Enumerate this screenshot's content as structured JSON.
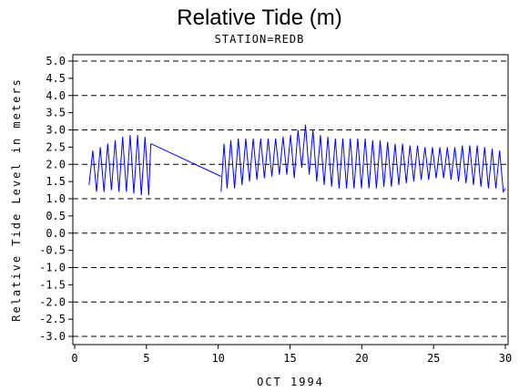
{
  "title": "Relative Tide (m)",
  "subtitle": "STATION=REDB",
  "chart_data": {
    "type": "line",
    "title": "Relative Tide (m)",
    "subtitle": "STATION=REDB",
    "xlabel": "OCT 1994",
    "ylabel": "Relative Tide Level in meters",
    "xlim": [
      0,
      30
    ],
    "ylim": [
      -3.0,
      5.0
    ],
    "xticks": [
      "0",
      "5",
      "10",
      "15",
      "20",
      "25",
      "30"
    ],
    "xtick_values": [
      0,
      5,
      10,
      15,
      20,
      25,
      30
    ],
    "yticks": [
      "5.0",
      "4.5",
      "4.0",
      "3.5",
      "3.0",
      "2.5",
      "2.0",
      "1.5",
      "1.0",
      "0.5",
      "0.0",
      "-0.5",
      "-1.0",
      "-1.5",
      "-2.0",
      "-2.5",
      "-3.0"
    ],
    "ytick_values": [
      5.0,
      4.5,
      4.0,
      3.5,
      3.0,
      2.5,
      2.0,
      1.5,
      1.0,
      0.5,
      0.0,
      -0.5,
      -1.0,
      -1.5,
      -2.0,
      -2.5,
      -3.0
    ],
    "dashed_gridlines_y": [
      5.0,
      4.0,
      3.0,
      2.0,
      1.0,
      0.0,
      -1.0,
      -2.0,
      -3.0
    ],
    "line_color": "#0000ff",
    "series": [
      {
        "segments": [
          {
            "x": [
              1.0,
              1.26,
              1.52,
              1.78,
              2.04,
              2.3,
              2.56,
              2.82,
              3.08,
              3.34,
              3.6,
              3.86,
              4.12,
              4.38,
              4.64,
              4.9,
              5.16,
              5.3
            ],
            "y": [
              1.4,
              2.4,
              1.2,
              2.5,
              1.2,
              2.6,
              1.25,
              2.7,
              1.2,
              2.8,
              1.2,
              2.85,
              1.15,
              2.85,
              1.1,
              2.8,
              1.1,
              2.6
            ]
          },
          {
            "x": [
              5.3,
              10.2
            ],
            "y": [
              2.6,
              1.65
            ]
          },
          {
            "x": [
              10.2,
              10.4,
              10.62,
              10.88,
              11.14,
              11.4,
              11.66,
              11.92,
              12.18,
              12.44,
              12.7,
              12.96,
              13.22,
              13.48,
              13.74,
              14.0,
              14.26,
              14.52,
              14.78,
              15.04,
              15.3,
              15.56,
              15.82,
              16.08,
              16.34,
              16.6,
              16.86,
              17.12,
              17.38,
              17.64,
              17.9,
              18.16,
              18.42,
              18.68,
              18.94,
              19.2,
              19.46,
              19.72,
              19.98,
              20.24,
              20.5,
              20.76,
              21.02,
              21.28,
              21.54,
              21.8,
              22.06,
              22.32,
              22.58,
              22.84,
              23.1,
              23.36,
              23.62,
              23.88,
              24.14,
              24.4,
              24.66,
              24.92,
              25.18,
              25.44,
              25.7,
              25.96,
              26.22,
              26.48,
              26.74,
              27.0,
              27.26,
              27.52,
              27.78,
              28.04,
              28.3,
              28.56,
              28.82,
              29.08,
              29.34,
              29.6,
              29.86,
              30.0
            ],
            "y": [
              1.2,
              2.6,
              1.3,
              2.7,
              1.3,
              2.75,
              1.4,
              2.75,
              1.5,
              2.75,
              1.55,
              2.75,
              1.6,
              2.75,
              1.65,
              2.75,
              1.7,
              2.8,
              1.7,
              2.85,
              1.6,
              3.0,
              1.9,
              3.15,
              1.7,
              3.0,
              1.5,
              2.85,
              1.4,
              2.8,
              1.35,
              2.75,
              1.3,
              2.75,
              1.3,
              2.75,
              1.3,
              2.75,
              1.3,
              2.75,
              1.3,
              2.7,
              1.3,
              2.7,
              1.35,
              2.65,
              1.35,
              2.6,
              1.4,
              2.6,
              1.45,
              2.55,
              1.5,
              2.55,
              1.55,
              2.5,
              1.55,
              2.5,
              1.6,
              2.5,
              1.6,
              2.5,
              1.55,
              2.5,
              1.5,
              2.55,
              1.45,
              2.55,
              1.4,
              2.55,
              1.35,
              2.5,
              1.3,
              2.45,
              1.3,
              2.4,
              1.2,
              1.3
            ]
          }
        ]
      }
    ],
    "grid": "dashed horizontal at integer values"
  }
}
